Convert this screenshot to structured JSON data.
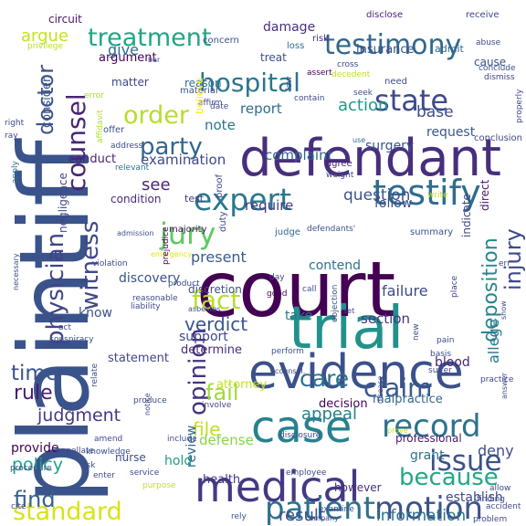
{
  "words": [
    {
      "text": "plaintiff",
      "color": "#3a538b"
    },
    {
      "text": "court",
      "color": "#440154"
    },
    {
      "text": "defendant",
      "color": "#472f7d"
    },
    {
      "text": "trial",
      "color": "#21918c"
    },
    {
      "text": "evidence",
      "color": "#3b518b"
    },
    {
      "text": "case",
      "color": "#26828e"
    },
    {
      "text": "medical",
      "color": "#443a83"
    },
    {
      "text": "hospital",
      "color": "#2a768e"
    },
    {
      "text": "testimony",
      "color": "#31688e"
    },
    {
      "text": "testify",
      "color": "#2f6c8e"
    },
    {
      "text": "expert",
      "color": "#2a788e"
    },
    {
      "text": "state",
      "color": "#3e4a89"
    },
    {
      "text": "physician",
      "color": "#414487"
    },
    {
      "text": "counsel",
      "color": "#482677"
    },
    {
      "text": "patient",
      "color": "#2d708e"
    },
    {
      "text": "motion",
      "color": "#3b528b"
    },
    {
      "text": "record",
      "color": "#2c728e"
    },
    {
      "text": "treatment",
      "color": "#21a585"
    },
    {
      "text": "jury",
      "color": "#5ec962"
    },
    {
      "text": "fact",
      "color": "#b8de29"
    },
    {
      "text": "order",
      "color": "#b5de2b"
    },
    {
      "text": "party",
      "color": "#32658e"
    },
    {
      "text": "issue",
      "color": "#3b528b"
    },
    {
      "text": "claim",
      "color": "#38598c"
    },
    {
      "text": "opinion",
      "color": "#46327e"
    },
    {
      "text": "standard",
      "color": "#d8e219"
    },
    {
      "text": "because",
      "color": "#22a884"
    },
    {
      "text": "injury",
      "color": "#3e4a89"
    },
    {
      "text": "deposition",
      "color": "#24878e"
    },
    {
      "text": "witness",
      "color": "#3f4788"
    },
    {
      "text": "doctor",
      "color": "#3b528b"
    },
    {
      "text": "time",
      "color": "#3a548c"
    },
    {
      "text": "rule",
      "color": "#481d6f"
    },
    {
      "text": "care",
      "color": "#2c728e"
    },
    {
      "text": "fail",
      "color": "#9fda3a"
    },
    {
      "text": "find",
      "color": "#355f8d"
    },
    {
      "text": "judgment",
      "color": "#453781"
    },
    {
      "text": "verdict",
      "color": "#39568c"
    },
    {
      "text": "policy",
      "color": "#1fa088"
    },
    {
      "text": "result",
      "color": "#3b528b"
    },
    {
      "text": "information",
      "color": "#2c738e"
    },
    {
      "text": "appeal",
      "color": "#27808e"
    },
    {
      "text": "file",
      "color": "#c2df23"
    },
    {
      "text": "allege",
      "color": "#2a788e"
    },
    {
      "text": "action",
      "color": "#1f9a8a"
    },
    {
      "text": "see",
      "color": "#482878"
    },
    {
      "text": "present",
      "color": "#375a8c"
    },
    {
      "text": "question",
      "color": "#3a548c"
    },
    {
      "text": "require",
      "color": "#453882"
    },
    {
      "text": "complaint",
      "color": "#32658e"
    },
    {
      "text": "report",
      "color": "#2e6e8e"
    },
    {
      "text": "examination",
      "color": "#3e4989"
    },
    {
      "text": "conduct",
      "color": "#482475"
    },
    {
      "text": "discovery",
      "color": "#3b528b"
    },
    {
      "text": "defense",
      "color": "#86d549"
    },
    {
      "text": "give",
      "color": "#2d718e"
    },
    {
      "text": "argue",
      "color": "#c8e020"
    },
    {
      "text": "note",
      "color": "#2a768e"
    },
    {
      "text": "base",
      "color": "#3d4d8a"
    },
    {
      "text": "request",
      "color": "#38598c"
    },
    {
      "text": "deny",
      "color": "#3e4c8a"
    },
    {
      "text": "know",
      "color": "#3b528b"
    },
    {
      "text": "review",
      "color": "#33638d"
    },
    {
      "text": "provide",
      "color": "#440154"
    },
    {
      "text": "grant",
      "color": "#2c728e"
    },
    {
      "text": "establish",
      "color": "#3e4a89"
    },
    {
      "text": "hold",
      "color": "#1e9c89"
    },
    {
      "text": "section",
      "color": "#46327e"
    },
    {
      "text": "support",
      "color": "#3f4788"
    },
    {
      "text": "statement",
      "color": "#414487"
    },
    {
      "text": "determine",
      "color": "#472c7a"
    },
    {
      "text": "contend",
      "color": "#2c738e"
    },
    {
      "text": "failure",
      "color": "#3e4989"
    },
    {
      "text": "health",
      "color": "#443983"
    },
    {
      "text": "however",
      "color": "#46307e"
    },
    {
      "text": "surgery",
      "color": "#3a548c"
    },
    {
      "text": "insurance",
      "color": "#3b518b"
    },
    {
      "text": "damage",
      "color": "#46327e"
    },
    {
      "text": "take",
      "color": "#2a778e"
    },
    {
      "text": "blood",
      "color": "#482576"
    },
    {
      "text": "follow",
      "color": "#3e4a89"
    },
    {
      "text": "decision",
      "color": "#440154"
    },
    {
      "text": "matter",
      "color": "#3f4788"
    },
    {
      "text": "argument",
      "color": "#440256"
    },
    {
      "text": "consider",
      "color": "#39568c"
    },
    {
      "text": "circuit",
      "color": "#48186a"
    },
    {
      "text": "negligence",
      "color": "#3f4889"
    },
    {
      "text": "condition",
      "color": "#472d7b"
    },
    {
      "text": "reason",
      "color": "#2d718e"
    },
    {
      "text": "malpractice",
      "color": "#32648e"
    },
    {
      "text": "attorney",
      "color": "#c5e021"
    },
    {
      "text": "nurse",
      "color": "#3d4d8a"
    },
    {
      "text": "professional",
      "color": "#481a6c"
    },
    {
      "text": "discretion",
      "color": "#3b528b"
    },
    {
      "text": "direct",
      "color": "#481769"
    },
    {
      "text": "indicate",
      "color": "#3f4788"
    },
    {
      "text": "cause",
      "color": "#3b528b"
    },
    {
      "text": "treat",
      "color": "#3b528b"
    },
    {
      "text": "admit",
      "color": "#31688e"
    },
    {
      "text": "test",
      "color": "#453781"
    },
    {
      "text": "proof",
      "color": "#3f4889"
    },
    {
      "text": "majority",
      "color": "#471063"
    },
    {
      "text": "duty",
      "color": "#3e4a89"
    },
    {
      "text": "judge",
      "color": "#31688e"
    },
    {
      "text": "summary",
      "color": "#3b528b"
    },
    {
      "text": "disclose",
      "color": "#481f70"
    },
    {
      "text": "receive",
      "color": "#3f4788"
    },
    {
      "text": "concern",
      "color": "#3b528b"
    },
    {
      "text": "risk",
      "color": "#46317e"
    },
    {
      "text": "loss",
      "color": "#2d708e"
    },
    {
      "text": "privilege",
      "color": "#b5de2b"
    },
    {
      "text": "error",
      "color": "#a2da37"
    },
    {
      "text": "material",
      "color": "#3b528b"
    },
    {
      "text": "affirm",
      "color": "#3f4788"
    },
    {
      "text": "believe",
      "color": "#fde725"
    },
    {
      "text": "date",
      "color": "#3e4a89"
    },
    {
      "text": "offer",
      "color": "#3b528b"
    },
    {
      "text": "address",
      "color": "#3e4989"
    },
    {
      "text": "affidavit",
      "color": "#b2dd2d"
    },
    {
      "text": "apply",
      "color": "#2e6d8e"
    },
    {
      "text": "right",
      "color": "#3e4c8a"
    },
    {
      "text": "ray",
      "color": "#3f4788"
    },
    {
      "text": "relevant",
      "color": "#2c738e"
    },
    {
      "text": "agree",
      "color": "#482173"
    },
    {
      "text": "weight",
      "color": "#414487"
    },
    {
      "text": "conclusion",
      "color": "#3e4989"
    },
    {
      "text": "conclude",
      "color": "#3b528b"
    },
    {
      "text": "dismiss",
      "color": "#414487"
    },
    {
      "text": "properly",
      "color": "#3f4788"
    },
    {
      "text": "need",
      "color": "#3d4e8a"
    },
    {
      "text": "seek",
      "color": "#3b528b"
    },
    {
      "text": "contain",
      "color": "#3e4989"
    },
    {
      "text": "assert",
      "color": "#440154"
    },
    {
      "text": "law",
      "color": "#3b528b"
    },
    {
      "text": "cross",
      "color": "#3e4a89"
    },
    {
      "text": "decedent",
      "color": "#bddf26"
    },
    {
      "text": "abuse",
      "color": "#3e4a89"
    },
    {
      "text": "use",
      "color": "#31688e"
    },
    {
      "text": "defendants'",
      "color": "#3b528b"
    },
    {
      "text": "write",
      "color": "#c8e020"
    },
    {
      "text": "admission",
      "color": "#3b528b"
    },
    {
      "text": "emergency",
      "color": "#dde318"
    },
    {
      "text": "reasonable",
      "color": "#3e4a89"
    },
    {
      "text": "violation",
      "color": "#3e4989"
    },
    {
      "text": "product",
      "color": "#3e4a89"
    },
    {
      "text": "liability",
      "color": "#3e4a89"
    },
    {
      "text": "good",
      "color": "#440154"
    },
    {
      "text": "day",
      "color": "#3e4c8a"
    },
    {
      "text": "call",
      "color": "#3b528b"
    },
    {
      "text": "objection",
      "color": "#3b528b"
    },
    {
      "text": "set",
      "color": "#3e4a89"
    },
    {
      "text": "place",
      "color": "#3f4788"
    },
    {
      "text": "show",
      "color": "#3e4a89"
    },
    {
      "text": "err",
      "color": "#3f4788"
    },
    {
      "text": "prejudice",
      "color": "#440154"
    },
    {
      "text": "necessary",
      "color": "#3e4a89"
    },
    {
      "text": "act",
      "color": "#3f4788"
    },
    {
      "text": "conspiracy",
      "color": "#3b528b"
    },
    {
      "text": "person",
      "color": "#3e4989"
    },
    {
      "text": "asbestos",
      "color": "#3b528b"
    },
    {
      "text": "perform",
      "color": "#3b528b"
    },
    {
      "text": "basis",
      "color": "#3e4a89"
    },
    {
      "text": "pain",
      "color": "#3e4a89"
    },
    {
      "text": "new",
      "color": "#3b528b"
    },
    {
      "text": "suffer",
      "color": "#3e4a89"
    },
    {
      "text": "practice",
      "color": "#3f4788"
    },
    {
      "text": "relate",
      "color": "#3b528b"
    },
    {
      "text": "involve",
      "color": "#3e4989"
    },
    {
      "text": "counsel.",
      "color": "#3e4989"
    },
    {
      "text": "disclosure",
      "color": "#3e4a89"
    },
    {
      "text": "disease",
      "color": "#3e4a89"
    },
    {
      "text": "prove",
      "color": "#c2df23"
    },
    {
      "text": "answer",
      "color": "#3e4a89"
    },
    {
      "text": "produce",
      "color": "#3e4a89"
    },
    {
      "text": "notice",
      "color": "#3e4a89"
    },
    {
      "text": "include",
      "color": "#3b528b"
    },
    {
      "text": "appellate",
      "color": "#3e4a89"
    },
    {
      "text": "ask",
      "color": "#3b528b"
    },
    {
      "text": "procedure",
      "color": "#3e4989"
    },
    {
      "text": "knowledge",
      "color": "#3e4a89"
    },
    {
      "text": "amend",
      "color": "#3e4a89"
    },
    {
      "text": "enter",
      "color": "#3e4a89"
    },
    {
      "text": "service",
      "color": "#3e4a89"
    },
    {
      "text": "purpose",
      "color": "#c8e020"
    },
    {
      "text": "employee",
      "color": "#3e4a89"
    },
    {
      "text": "allow",
      "color": "#3e4a89"
    },
    {
      "text": "finding",
      "color": "#3e4a89"
    },
    {
      "text": "examine",
      "color": "#3e4a89"
    },
    {
      "text": "company",
      "color": "#3e4a89"
    },
    {
      "text": "accident",
      "color": "#3e4a89"
    },
    {
      "text": "rely",
      "color": "#3b528b"
    },
    {
      "text": "problem",
      "color": "#3e4a89"
    },
    {
      "text": "cite",
      "color": "#3e4a89"
    },
    {
      "text": "bar",
      "color": "#3e4a89"
    }
  ]
}
